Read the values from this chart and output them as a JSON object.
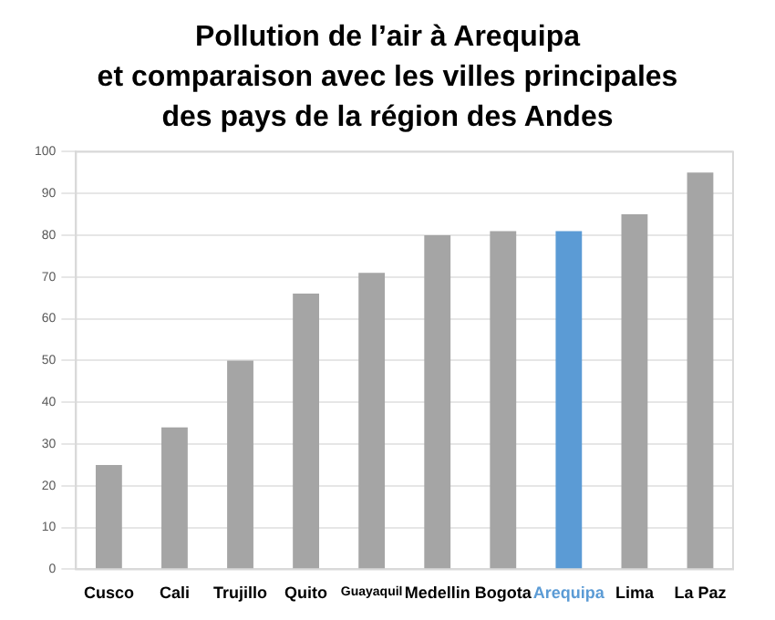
{
  "chart_data": {
    "type": "bar",
    "title": "Pollution de l’air à Arequipa\net comparaison avec les villes principales\ndes pays de la région des Andes",
    "categories": [
      "Cusco",
      "Cali",
      "Trujillo",
      "Quito",
      "Guayaquil",
      "Medellin",
      "Bogota",
      "Arequipa",
      "Lima",
      "La Paz"
    ],
    "values": [
      25,
      34,
      50,
      66,
      71,
      80,
      81,
      81,
      85,
      95
    ],
    "colors": [
      "#a5a5a5",
      "#a5a5a5",
      "#a5a5a5",
      "#a5a5a5",
      "#a5a5a5",
      "#a5a5a5",
      "#a5a5a5",
      "#5b9bd5",
      "#a5a5a5",
      "#a5a5a5"
    ],
    "ylim": [
      0,
      100
    ],
    "yticks": [
      0,
      10,
      20,
      30,
      40,
      50,
      60,
      70,
      80,
      90,
      100
    ],
    "grid": "y",
    "legend": false
  }
}
